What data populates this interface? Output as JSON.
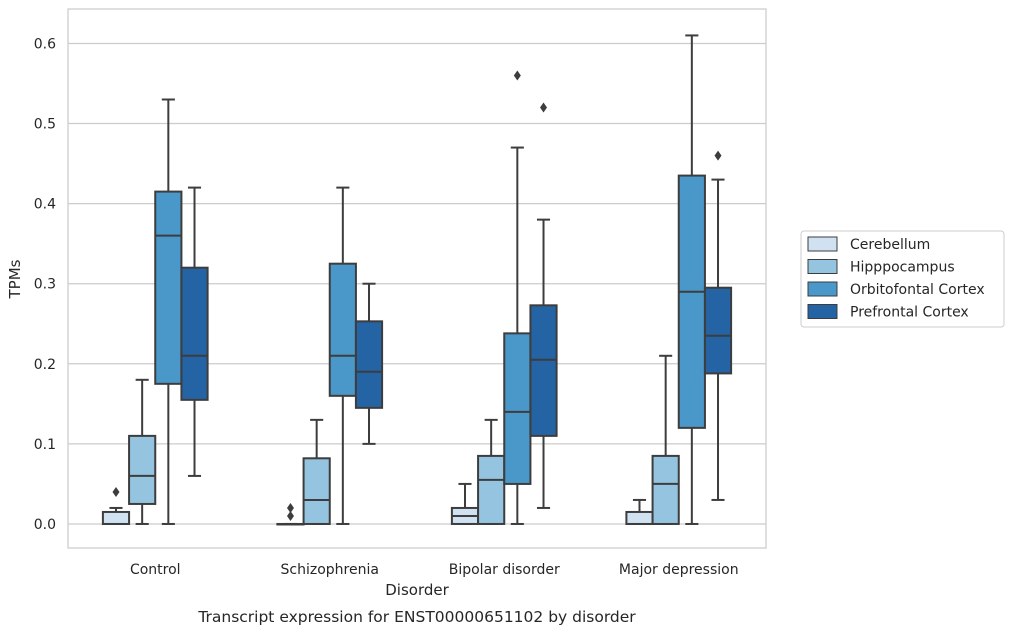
{
  "chart_data": {
    "type": "box",
    "xlabel": "Disorder",
    "ylabel": "TPMs",
    "caption": "Transcript expression for ENST00000651102 by disorder",
    "ylim": [
      -0.03,
      0.643
    ],
    "yticks": [
      0.0,
      0.1,
      0.2,
      0.3,
      0.4,
      0.5,
      0.6
    ],
    "ytick_labels": [
      "0.0",
      "0.1",
      "0.2",
      "0.3",
      "0.4",
      "0.5",
      "0.6"
    ],
    "grid": "horizontal",
    "legend_position": "right",
    "categories": [
      "Control",
      "Schizophrenia",
      "Bipolar disorder",
      "Major depression"
    ],
    "series": [
      {
        "name": "Cerebellum",
        "color": "#d0e1f2",
        "boxes": [
          {
            "whislo": 0.0,
            "q1": 0.0,
            "med": 0.0,
            "q3": 0.015,
            "whishi": 0.02,
            "fliers": [
              0.04
            ]
          },
          {
            "whislo": 0.0,
            "q1": 0.0,
            "med": 0.0,
            "q3": 0.0,
            "whishi": 0.0,
            "fliers": [
              0.01,
              0.02
            ]
          },
          {
            "whislo": 0.0,
            "q1": 0.0,
            "med": 0.01,
            "q3": 0.02,
            "whishi": 0.05,
            "fliers": []
          },
          {
            "whislo": 0.0,
            "q1": 0.0,
            "med": 0.0,
            "q3": 0.015,
            "whishi": 0.03,
            "fliers": []
          }
        ]
      },
      {
        "name": "Hipppocampus",
        "color": "#94c4df",
        "boxes": [
          {
            "whislo": 0.0,
            "q1": 0.025,
            "med": 0.06,
            "q3": 0.11,
            "whishi": 0.18,
            "fliers": []
          },
          {
            "whislo": 0.0,
            "q1": 0.0,
            "med": 0.03,
            "q3": 0.082,
            "whishi": 0.13,
            "fliers": []
          },
          {
            "whislo": 0.0,
            "q1": 0.0,
            "med": 0.055,
            "q3": 0.085,
            "whishi": 0.13,
            "fliers": []
          },
          {
            "whislo": 0.0,
            "q1": 0.0,
            "med": 0.05,
            "q3": 0.085,
            "whishi": 0.21,
            "fliers": []
          }
        ]
      },
      {
        "name": "Orbitofontal Cortex",
        "color": "#4a98c9",
        "boxes": [
          {
            "whislo": 0.0,
            "q1": 0.175,
            "med": 0.36,
            "q3": 0.415,
            "whishi": 0.53,
            "fliers": []
          },
          {
            "whislo": 0.0,
            "q1": 0.16,
            "med": 0.21,
            "q3": 0.325,
            "whishi": 0.42,
            "fliers": []
          },
          {
            "whislo": 0.0,
            "q1": 0.05,
            "med": 0.14,
            "q3": 0.238,
            "whishi": 0.47,
            "fliers": [
              0.56
            ]
          },
          {
            "whislo": 0.0,
            "q1": 0.12,
            "med": 0.29,
            "q3": 0.435,
            "whishi": 0.61,
            "fliers": []
          }
        ]
      },
      {
        "name": "Prefrontal Cortex",
        "color": "#2464a4",
        "boxes": [
          {
            "whislo": 0.06,
            "q1": 0.155,
            "med": 0.21,
            "q3": 0.32,
            "whishi": 0.42,
            "fliers": []
          },
          {
            "whislo": 0.1,
            "q1": 0.145,
            "med": 0.19,
            "q3": 0.253,
            "whishi": 0.3,
            "fliers": []
          },
          {
            "whislo": 0.02,
            "q1": 0.11,
            "med": 0.205,
            "q3": 0.273,
            "whishi": 0.38,
            "fliers": [
              0.52
            ]
          },
          {
            "whislo": 0.03,
            "q1": 0.188,
            "med": 0.235,
            "q3": 0.295,
            "whishi": 0.43,
            "fliers": [
              0.46
            ]
          }
        ]
      }
    ]
  }
}
